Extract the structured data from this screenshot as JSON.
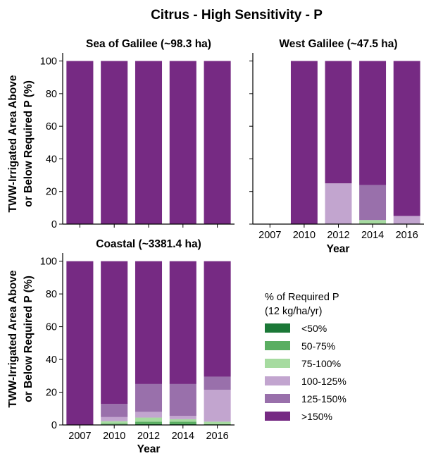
{
  "figure": {
    "title": "Citrus - High Sensitivity - P",
    "ylabel_line1": "TWW-Irrigated Area Above",
    "ylabel_line2": "or Below Required P (%)",
    "xlabel": "Year"
  },
  "legend": {
    "title_line1": "% of Required P",
    "title_line2": "(12 kg/ha/yr)",
    "placement": "lower-right",
    "items": [
      {
        "label": "<50%",
        "color": "#1b7837"
      },
      {
        "label": "50-75%",
        "color": "#5aae61"
      },
      {
        "label": "75-100%",
        "color": "#a6dba0"
      },
      {
        "label": "100-125%",
        "color": "#c2a5cf"
      },
      {
        "label": "125-150%",
        "color": "#9970ab"
      },
      {
        "label": ">150%",
        "color": "#762a83"
      }
    ]
  },
  "chart_data": [
    {
      "type": "bar",
      "stacked": true,
      "title": "Sea of Galilee (~98.3 ha)",
      "categories": [
        "2007",
        "2010",
        "2012",
        "2014",
        "2016"
      ],
      "ylim": [
        0,
        105
      ],
      "yticks": [
        0,
        20,
        40,
        60,
        80,
        100
      ],
      "show_x_ticklabels": false,
      "show_y_ticklabels": true,
      "series": [
        {
          "name": "<50%",
          "values": [
            0,
            0,
            0,
            0,
            0
          ]
        },
        {
          "name": "50-75%",
          "values": [
            0,
            0,
            0,
            0,
            0
          ]
        },
        {
          "name": "75-100%",
          "values": [
            0,
            0,
            0,
            0,
            0
          ]
        },
        {
          "name": "100-125%",
          "values": [
            0,
            0,
            0,
            0,
            0
          ]
        },
        {
          "name": "125-150%",
          "values": [
            0,
            0,
            0,
            0,
            0
          ]
        },
        {
          "name": ">150%",
          "values": [
            100,
            100,
            100,
            100,
            100
          ]
        }
      ]
    },
    {
      "type": "bar",
      "stacked": true,
      "title": "West Galilee (~47.5 ha)",
      "categories": [
        "2007",
        "2010",
        "2012",
        "2014",
        "2016"
      ],
      "ylim": [
        0,
        105
      ],
      "yticks": [
        0,
        20,
        40,
        60,
        80,
        100
      ],
      "show_x_ticklabels": true,
      "show_y_ticklabels": false,
      "series": [
        {
          "name": "<50%",
          "values": [
            0,
            0,
            0,
            0,
            0
          ]
        },
        {
          "name": "50-75%",
          "values": [
            0,
            0,
            0,
            0,
            0
          ]
        },
        {
          "name": "75-100%",
          "values": [
            0,
            0,
            0,
            2.5,
            0
          ]
        },
        {
          "name": "100-125%",
          "values": [
            0,
            0,
            25,
            0,
            5
          ]
        },
        {
          "name": "125-150%",
          "values": [
            0,
            0,
            0,
            21.5,
            0
          ]
        },
        {
          "name": ">150%",
          "values": [
            0,
            100,
            75,
            76,
            95
          ]
        }
      ]
    },
    {
      "type": "bar",
      "stacked": true,
      "title": "Coastal (~3381.4 ha)",
      "categories": [
        "2007",
        "2010",
        "2012",
        "2014",
        "2016"
      ],
      "ylim": [
        0,
        105
      ],
      "yticks": [
        0,
        20,
        40,
        60,
        80,
        100
      ],
      "show_x_ticklabels": true,
      "show_y_ticklabels": true,
      "series": [
        {
          "name": "<50%",
          "values": [
            0,
            0.3,
            0.5,
            0.5,
            0
          ]
        },
        {
          "name": "50-75%",
          "values": [
            0,
            0.5,
            1.5,
            1.5,
            0.5
          ]
        },
        {
          "name": "75-100%",
          "values": [
            0,
            1.5,
            2.5,
            1.5,
            1.5
          ]
        },
        {
          "name": "100-125%",
          "values": [
            0,
            2.5,
            3.5,
            2,
            19.5
          ]
        },
        {
          "name": "125-150%",
          "values": [
            0,
            8,
            17,
            19.5,
            8
          ]
        },
        {
          "name": ">150%",
          "values": [
            100,
            87.2,
            75,
            75,
            70.5
          ]
        }
      ]
    }
  ]
}
